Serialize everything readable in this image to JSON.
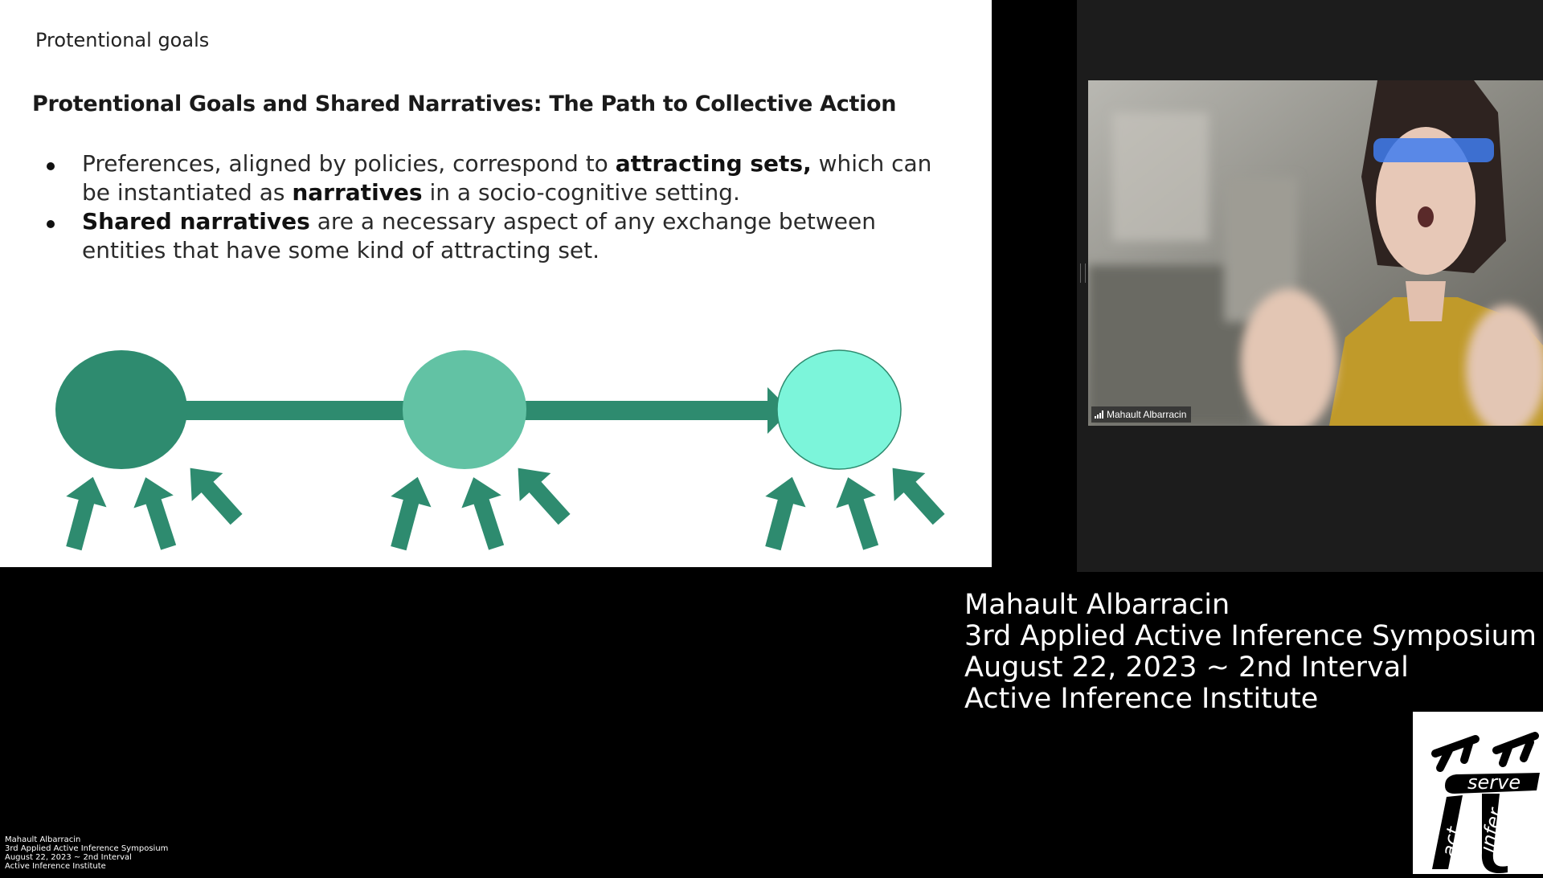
{
  "slide": {
    "label": "Protentional goals",
    "heading": "Protentional Goals and Shared Narratives: The Path to Collective Action",
    "bullets": [
      {
        "parts": [
          "Preferences, aligned by policies, correspond to ",
          "attracting sets,",
          " which can be instantiated as ",
          "narratives",
          " in a socio-cognitive setting."
        ]
      },
      {
        "parts": [
          "Shared narratives",
          " are a necessary aspect of any exchange between entities that have some kind of attracting set."
        ]
      }
    ],
    "diagram": {
      "node_colors": [
        "#2e8b6f",
        "#62c2a4",
        "#7cf5da"
      ],
      "arrow_color": "#2e8b6f"
    }
  },
  "video": {
    "participant_name": "Mahault Albarracin",
    "signal_icon": "signal-bars-icon"
  },
  "credits": {
    "speaker": "Mahault Albarracin",
    "event": "3rd Applied Active Inference Symposium",
    "date": "August 22, 2023 ~ 2nd Interval",
    "org": "Active Inference Institute"
  },
  "logo": {
    "word_serve": "serve",
    "word_act": "act",
    "word_infer": "infer"
  }
}
